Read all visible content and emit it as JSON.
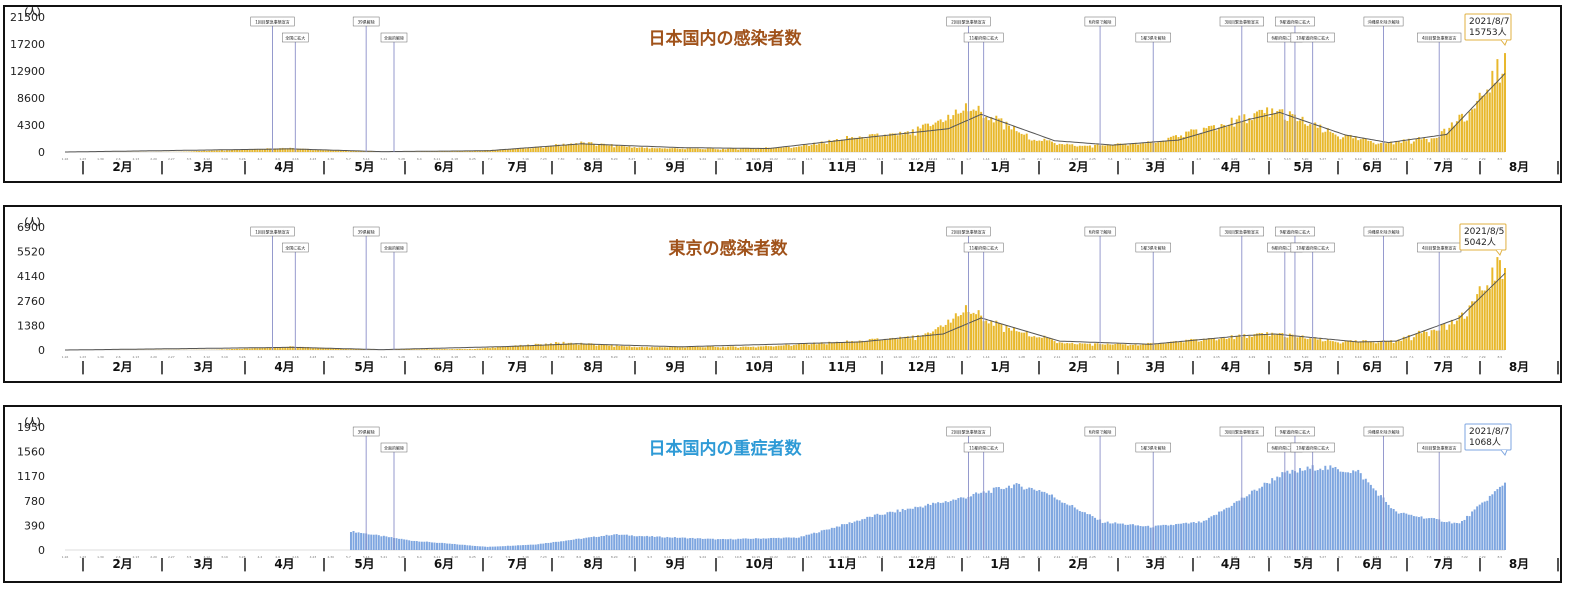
{
  "chart_data": [
    {
      "type": "bar",
      "title": "日本国内の感染者数",
      "unit_label": "（人）",
      "title_color": "#a0521a",
      "bar_color": "#e8b82c",
      "line_color": "#555555",
      "ylim": [
        0,
        21500
      ],
      "yticks": [
        "21500",
        "17200",
        "12900",
        "8600",
        "4300",
        "0"
      ],
      "months": [
        "2月",
        "3月",
        "4月",
        "5月",
        "6月",
        "7月",
        "8月",
        "9月",
        "10月",
        "11月",
        "12月",
        "1月",
        "2月",
        "3月",
        "4月",
        "5月",
        "6月",
        "7月",
        "8月"
      ],
      "x_start": "2020-01-16",
      "x_end": "2021-08-07",
      "bars_from": "2020-01-16",
      "daily_anchors": [
        [
          "2020-01-16",
          0
        ],
        [
          "2020-03-01",
          30
        ],
        [
          "2020-04-11",
          700
        ],
        [
          "2020-05-01",
          250
        ],
        [
          "2020-05-25",
          30
        ],
        [
          "2020-06-20",
          80
        ],
        [
          "2020-07-15",
          600
        ],
        [
          "2020-08-07",
          1600
        ],
        [
          "2020-09-01",
          700
        ],
        [
          "2020-10-01",
          500
        ],
        [
          "2020-11-01",
          900
        ],
        [
          "2020-11-20",
          2400
        ],
        [
          "2020-12-15",
          3200
        ],
        [
          "2021-01-08",
          7800
        ],
        [
          "2021-02-01",
          2300
        ],
        [
          "2021-02-20",
          1000
        ],
        [
          "2021-03-20",
          1600
        ],
        [
          "2021-04-20",
          5000
        ],
        [
          "2021-05-08",
          7200
        ],
        [
          "2021-05-15",
          6000
        ],
        [
          "2021-06-01",
          3000
        ],
        [
          "2021-06-20",
          1500
        ],
        [
          "2021-07-10",
          2500
        ],
        [
          "2021-07-25",
          7000
        ],
        [
          "2021-08-07",
          15753
        ]
      ],
      "trend_anchors": [
        [
          "2020-01-16",
          0
        ],
        [
          "2020-04-14",
          500
        ],
        [
          "2020-05-20",
          60
        ],
        [
          "2020-07-01",
          200
        ],
        [
          "2020-08-07",
          1300
        ],
        [
          "2020-09-15",
          700
        ],
        [
          "2020-10-20",
          550
        ],
        [
          "2020-11-25",
          2200
        ],
        [
          "2020-12-30",
          3700
        ],
        [
          "2021-01-12",
          6000
        ],
        [
          "2021-02-10",
          1800
        ],
        [
          "2021-03-05",
          1100
        ],
        [
          "2021-03-31",
          1900
        ],
        [
          "2021-04-28",
          5200
        ],
        [
          "2021-05-10",
          6300
        ],
        [
          "2021-06-05",
          2700
        ],
        [
          "2021-06-22",
          1500
        ],
        [
          "2021-07-15",
          2800
        ],
        [
          "2021-08-07",
          12500
        ]
      ],
      "events": [
        {
          "date": "2020-04-07",
          "label": "1回目緊急事態宣言",
          "level": 0
        },
        {
          "date": "2020-04-16",
          "label": "全国に拡大",
          "level": 1
        },
        {
          "date": "2020-05-14",
          "label": "39県解除",
          "level": 0
        },
        {
          "date": "2020-05-25",
          "label": "全面的解除",
          "level": 1
        },
        {
          "date": "2021-01-07",
          "label": "2回目緊急事態宣言",
          "level": 0
        },
        {
          "date": "2021-01-13",
          "label": "11都府県に拡大",
          "level": 1
        },
        {
          "date": "2021-02-28",
          "label": "6府県で解除",
          "level": 0
        },
        {
          "date": "2021-03-21",
          "label": "1都3県を解除",
          "level": 1
        },
        {
          "date": "2021-04-25",
          "label": "3回目緊急事態宣言",
          "level": 0
        },
        {
          "date": "2021-05-12",
          "label": "6都府県に拡大",
          "level": 1
        },
        {
          "date": "2021-05-16",
          "label": "9都道府県に拡大",
          "level": 0
        },
        {
          "date": "2021-05-23",
          "label": "10都道府県に拡大",
          "level": 1
        },
        {
          "date": "2021-06-20",
          "label": "沖縄県を除き解除",
          "level": 0
        },
        {
          "date": "2021-07-12",
          "label": "4回目緊急事態宣言",
          "level": 1
        }
      ],
      "callout": {
        "date": "2021/8/7",
        "value": "15753人",
        "at": "2021-08-07",
        "border": "#e0b040"
      }
    },
    {
      "type": "bar",
      "title": "東京の感染者数",
      "unit_label": "（人）",
      "title_color": "#a0521a",
      "bar_color": "#e8b82c",
      "line_color": "#555555",
      "ylim": [
        0,
        6900
      ],
      "yticks": [
        "6900",
        "5520",
        "4140",
        "2760",
        "1380",
        "0"
      ],
      "months": [
        "2月",
        "3月",
        "4月",
        "5月",
        "6月",
        "7月",
        "8月",
        "9月",
        "10月",
        "11月",
        "12月",
        "1月",
        "2月",
        "3月",
        "4月",
        "5月",
        "6月",
        "7月",
        "8月"
      ],
      "x_start": "2020-01-16",
      "x_end": "2021-08-07",
      "bars_from": "2020-01-16",
      "daily_anchors": [
        [
          "2020-01-16",
          0
        ],
        [
          "2020-03-15",
          15
        ],
        [
          "2020-04-14",
          200
        ],
        [
          "2020-05-15",
          20
        ],
        [
          "2020-06-25",
          60
        ],
        [
          "2020-07-31",
          450
        ],
        [
          "2020-08-31",
          170
        ],
        [
          "2020-10-15",
          200
        ],
        [
          "2020-11-20",
          500
        ],
        [
          "2020-12-20",
          800
        ],
        [
          "2021-01-07",
          2500
        ],
        [
          "2021-01-20",
          1400
        ],
        [
          "2021-02-15",
          400
        ],
        [
          "2021-03-15",
          320
        ],
        [
          "2021-04-15",
          700
        ],
        [
          "2021-05-08",
          1000
        ],
        [
          "2021-06-01",
          500
        ],
        [
          "2021-06-25",
          550
        ],
        [
          "2021-07-20",
          1800
        ],
        [
          "2021-08-05",
          5042
        ],
        [
          "2021-08-07",
          4600
        ]
      ],
      "trend_anchors": [
        [
          "2020-01-16",
          0
        ],
        [
          "2020-04-15",
          150
        ],
        [
          "2020-05-20",
          20
        ],
        [
          "2020-07-10",
          200
        ],
        [
          "2020-08-05",
          350
        ],
        [
          "2020-09-15",
          180
        ],
        [
          "2020-11-25",
          450
        ],
        [
          "2020-12-28",
          900
        ],
        [
          "2021-01-12",
          1800
        ],
        [
          "2021-02-12",
          500
        ],
        [
          "2021-03-20",
          320
        ],
        [
          "2021-04-25",
          800
        ],
        [
          "2021-05-08",
          900
        ],
        [
          "2021-06-10",
          450
        ],
        [
          "2021-06-25",
          500
        ],
        [
          "2021-07-20",
          1800
        ],
        [
          "2021-08-07",
          4300
        ]
      ],
      "events": [
        {
          "date": "2020-04-07",
          "label": "1回目緊急事態宣言",
          "level": 0
        },
        {
          "date": "2020-04-16",
          "label": "全国に拡大",
          "level": 1
        },
        {
          "date": "2020-05-14",
          "label": "39県解除",
          "level": 0
        },
        {
          "date": "2020-05-25",
          "label": "全面的解除",
          "level": 1
        },
        {
          "date": "2021-01-07",
          "label": "2回目緊急事態宣言",
          "level": 0
        },
        {
          "date": "2021-01-13",
          "label": "11都府県に拡大",
          "level": 1
        },
        {
          "date": "2021-02-28",
          "label": "6府県で解除",
          "level": 0
        },
        {
          "date": "2021-03-21",
          "label": "1都3県を解除",
          "level": 1
        },
        {
          "date": "2021-04-25",
          "label": "3回目緊急事態宣言",
          "level": 0
        },
        {
          "date": "2021-05-12",
          "label": "6都府県に拡大",
          "level": 1
        },
        {
          "date": "2021-05-16",
          "label": "9都道府県に拡大",
          "level": 0
        },
        {
          "date": "2021-05-23",
          "label": "10都道府県に拡大",
          "level": 1
        },
        {
          "date": "2021-06-20",
          "label": "沖縄県を除き解除",
          "level": 0
        },
        {
          "date": "2021-07-12",
          "label": "4回目緊急事態宣言",
          "level": 1
        }
      ],
      "callout": {
        "date": "2021/8/5",
        "value": "5042人",
        "at": "2021-08-05",
        "border": "#e0b040"
      }
    },
    {
      "type": "bar",
      "title": "日本国内の重症者数",
      "unit_label": "（人）",
      "title_color": "#2e9ad6",
      "bar_color": "#7ea6e0",
      "line_color": "",
      "ylim": [
        0,
        1950
      ],
      "yticks": [
        "1950",
        "1560",
        "1170",
        "780",
        "390",
        "0"
      ],
      "months": [
        "2月",
        "3月",
        "4月",
        "5月",
        "6月",
        "7月",
        "8月",
        "9月",
        "10月",
        "11月",
        "12月",
        "1月",
        "2月",
        "3月",
        "4月",
        "5月",
        "6月",
        "7月",
        "8月"
      ],
      "x_start": "2020-01-16",
      "x_end": "2021-08-07",
      "bars_from": "2020-05-08",
      "daily_anchors": [
        [
          "2020-05-08",
          300
        ],
        [
          "2020-06-01",
          150
        ],
        [
          "2020-07-01",
          50
        ],
        [
          "2020-07-20",
          90
        ],
        [
          "2020-08-20",
          250
        ],
        [
          "2020-09-01",
          220
        ],
        [
          "2020-10-01",
          170
        ],
        [
          "2020-11-01",
          200
        ],
        [
          "2020-12-01",
          550
        ],
        [
          "2021-01-01",
          800
        ],
        [
          "2021-01-25",
          1040
        ],
        [
          "2021-02-05",
          950
        ],
        [
          "2021-03-01",
          450
        ],
        [
          "2021-03-20",
          370
        ],
        [
          "2021-04-10",
          450
        ],
        [
          "2021-04-25",
          820
        ],
        [
          "2021-05-10",
          1200
        ],
        [
          "2021-05-25",
          1330
        ],
        [
          "2021-06-10",
          1250
        ],
        [
          "2021-06-25",
          600
        ],
        [
          "2021-07-20",
          420
        ],
        [
          "2021-08-07",
          1068
        ]
      ],
      "trend_anchors": [],
      "events": [
        {
          "date": "2020-05-14",
          "label": "39県解除",
          "level": 0
        },
        {
          "date": "2020-05-25",
          "label": "全面的解除",
          "level": 1
        },
        {
          "date": "2021-01-07",
          "label": "2回目緊急事態宣言",
          "level": 0
        },
        {
          "date": "2021-01-13",
          "label": "11都府県に拡大",
          "level": 1
        },
        {
          "date": "2021-02-28",
          "label": "6府県で解除",
          "level": 0
        },
        {
          "date": "2021-03-21",
          "label": "1都3県を解除",
          "level": 1
        },
        {
          "date": "2021-04-25",
          "label": "3回目緊急事態宣言",
          "level": 0
        },
        {
          "date": "2021-05-12",
          "label": "6都府県に拡大",
          "level": 1
        },
        {
          "date": "2021-05-16",
          "label": "9都道府県に拡大",
          "level": 0
        },
        {
          "date": "2021-05-23",
          "label": "10都道府県に拡大",
          "level": 1
        },
        {
          "date": "2021-06-20",
          "label": "沖縄県を除き解除",
          "level": 0
        },
        {
          "date": "2021-07-12",
          "label": "4回目緊急事態宣言",
          "level": 1
        }
      ],
      "callout": {
        "date": "2021/8/7",
        "value": "1068人",
        "at": "2021-08-07",
        "border": "#7ea6e0"
      }
    }
  ]
}
